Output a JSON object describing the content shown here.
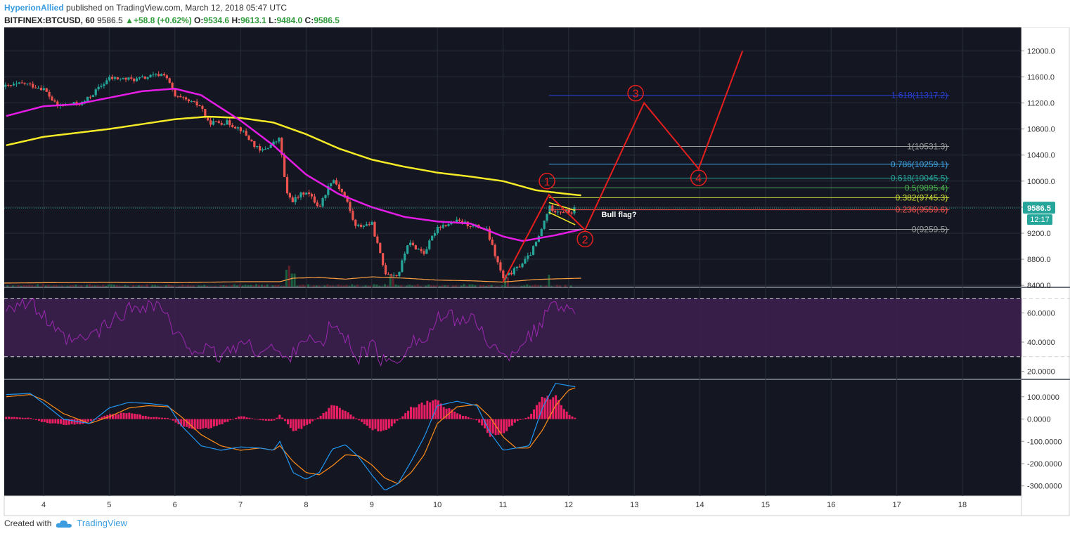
{
  "header": {
    "author": "HyperionAllied",
    "published": "published on TradingView.com, March 12, 2018 05:47 UTC",
    "symbol": "BITFINEX:BTCUSD, 60",
    "last": "9586.5",
    "change_arrow": "▲",
    "change": "+58.8 (+0.62%)",
    "o_label": "O:",
    "o": "9534.6",
    "h_label": "H:",
    "h": "9613.1",
    "l_label": "L:",
    "l": "9484.0",
    "c_label": "C:",
    "c": "9586.5"
  },
  "footer": {
    "created_with": "Created with",
    "brand": "TradingView",
    "logo_icon": "cloud-logo-icon"
  },
  "colors": {
    "background": "#141721",
    "grid": "#2a2e39",
    "bull": "#26a69a",
    "bear": "#ef5350",
    "ma_fast": "#e51ce6",
    "ma_slow": "#f5eb27",
    "wave": "#e61e1e",
    "rsi": "#9c27b0",
    "rsi_band": "#3a1f4d",
    "macd": "#2196f3",
    "signal": "#ff8c1a",
    "hist": "#e91e63",
    "price_tag": "#26a69a"
  },
  "chart_data": [
    {
      "type": "candlestick",
      "title": "BITFINEX:BTCUSD, 60",
      "x_ticks": [
        "4",
        "5",
        "6",
        "7",
        "8",
        "9",
        "10",
        "11",
        "12",
        "13",
        "14",
        "15",
        "16",
        "17",
        "18"
      ],
      "y_ticks": [
        "8400.0",
        "8800.0",
        "9200.0",
        "9600.0",
        "10000.0",
        "10400.0",
        "10800.0",
        "11200.0",
        "11600.0",
        "12000.0"
      ],
      "ylim": [
        8380,
        12360
      ],
      "xlim": [
        3.4,
        18.9
      ],
      "anchors": [
        [
          3.43,
          11450
        ],
        [
          3.7,
          11500
        ],
        [
          4.0,
          11420
        ],
        [
          4.2,
          11150
        ],
        [
          4.6,
          11200
        ],
        [
          5.0,
          11580
        ],
        [
          5.4,
          11560
        ],
        [
          5.7,
          11620
        ],
        [
          5.85,
          11650
        ],
        [
          6.0,
          11300
        ],
        [
          6.4,
          11150
        ],
        [
          6.5,
          10900
        ],
        [
          6.8,
          10900
        ],
        [
          7.0,
          10800
        ],
        [
          7.3,
          10450
        ],
        [
          7.6,
          10650
        ],
        [
          7.7,
          9800
        ],
        [
          7.8,
          9700
        ],
        [
          8.0,
          9850
        ],
        [
          8.2,
          9600
        ],
        [
          8.4,
          10050
        ],
        [
          8.6,
          9750
        ],
        [
          8.75,
          9300
        ],
        [
          9.0,
          9350
        ],
        [
          9.2,
          8600
        ],
        [
          9.4,
          8550
        ],
        [
          9.55,
          9050
        ],
        [
          9.8,
          8900
        ],
        [
          10.0,
          9300
        ],
        [
          10.3,
          9380
        ],
        [
          10.6,
          9300
        ],
        [
          10.75,
          9250
        ],
        [
          11.0,
          8500
        ],
        [
          11.2,
          8650
        ],
        [
          11.4,
          8850
        ],
        [
          11.55,
          9150
        ],
        [
          11.7,
          9600
        ],
        [
          11.8,
          9550
        ],
        [
          12.05,
          9520
        ],
        [
          12.1,
          9586.5
        ]
      ],
      "last_price": "9586.5",
      "countdown": "12:17",
      "ma_fast_anchors": [
        [
          3.43,
          11000
        ],
        [
          4.0,
          11150
        ],
        [
          4.5,
          11180
        ],
        [
          5.0,
          11280
        ],
        [
          5.5,
          11380
        ],
        [
          6.0,
          11420
        ],
        [
          6.4,
          11320
        ],
        [
          7.0,
          10930
        ],
        [
          7.5,
          10550
        ],
        [
          8.0,
          10100
        ],
        [
          8.5,
          9800
        ],
        [
          9.0,
          9600
        ],
        [
          9.5,
          9450
        ],
        [
          10.0,
          9380
        ],
        [
          10.5,
          9350
        ],
        [
          11.0,
          9150
        ],
        [
          11.3,
          9080
        ],
        [
          11.8,
          9170
        ],
        [
          12.2,
          9260
        ]
      ],
      "ma_slow_anchors": [
        [
          3.43,
          10550
        ],
        [
          4.0,
          10680
        ],
        [
          5.0,
          10800
        ],
        [
          6.0,
          10950
        ],
        [
          6.5,
          10990
        ],
        [
          7.0,
          10970
        ],
        [
          7.5,
          10900
        ],
        [
          8.0,
          10720
        ],
        [
          8.5,
          10500
        ],
        [
          9.0,
          10330
        ],
        [
          9.5,
          10220
        ],
        [
          10.0,
          10130
        ],
        [
          10.5,
          10070
        ],
        [
          11.0,
          10000
        ],
        [
          11.5,
          9860
        ],
        [
          12.0,
          9800
        ],
        [
          12.2,
          9780
        ]
      ],
      "volume_ma_anchors": [
        [
          3.43,
          8435
        ],
        [
          4.0,
          8440
        ],
        [
          5.0,
          8445
        ],
        [
          6.0,
          8440
        ],
        [
          7.0,
          8455
        ],
        [
          7.6,
          8455
        ],
        [
          7.8,
          8510
        ],
        [
          8.2,
          8520
        ],
        [
          8.6,
          8495
        ],
        [
          9.0,
          8530
        ],
        [
          9.5,
          8510
        ],
        [
          10.0,
          8480
        ],
        [
          10.5,
          8470
        ],
        [
          11.0,
          8450
        ],
        [
          11.5,
          8490
        ],
        [
          12.2,
          8510
        ]
      ],
      "volume_spikes": [
        [
          7.7,
          8640
        ],
        [
          7.75,
          8700
        ],
        [
          7.8,
          8580
        ],
        [
          9.3,
          8560
        ],
        [
          11.05,
          8520
        ],
        [
          11.7,
          8560
        ]
      ],
      "fibonacci": [
        {
          "label": "1.618(11317.2)",
          "value": 11317.2,
          "color": "#2a3fd6"
        },
        {
          "label": "1(10531.3)",
          "value": 10531.3,
          "color": "#9e9e9e"
        },
        {
          "label": "0.786(10259.1)",
          "value": 10259.1,
          "color": "#3fa3e0"
        },
        {
          "label": "0.618(10045.5)",
          "value": 10045.5,
          "color": "#26a69a"
        },
        {
          "label": "0.5(9895.4)",
          "value": 9895.4,
          "color": "#4caf50"
        },
        {
          "label": "0.382(9745.3)",
          "value": 9745.3,
          "color": "#cddc39"
        },
        {
          "label": "0.236(9559.6)",
          "value": 9559.6,
          "color": "#ef5350"
        },
        {
          "label": "0(9259.5)",
          "value": 9259.5,
          "color": "#9e9e9e"
        }
      ],
      "fib_x_range": [
        11.7,
        17.8
      ],
      "elliott_waves": [
        {
          "x": 11.0,
          "y": 8450,
          "label": ""
        },
        {
          "x": 11.7,
          "y": 9790,
          "label": "1"
        },
        {
          "x": 12.25,
          "y": 9250,
          "label": "2"
        },
        {
          "x": 13.15,
          "y": 11200,
          "label": "3"
        },
        {
          "x": 13.98,
          "y": 10190,
          "label": "4"
        },
        {
          "x": 14.65,
          "y": 12000,
          "label": "5"
        }
      ],
      "wave_circles": [
        {
          "label": "1",
          "x": 11.67,
          "y": 10000
        },
        {
          "label": "2",
          "x": 12.25,
          "y": 9110
        },
        {
          "label": "3",
          "x": 13.02,
          "y": 11350
        },
        {
          "label": "4",
          "x": 13.98,
          "y": 10050
        },
        {
          "label": "5",
          "x": 14.65,
          "y": 12550
        }
      ],
      "flag": {
        "upper": [
          [
            11.7,
            9670
          ],
          [
            12.1,
            9550
          ]
        ],
        "lower": [
          [
            11.7,
            9520
          ],
          [
            12.1,
            9330
          ]
        ]
      },
      "annotation": "Bull flag?"
    },
    {
      "type": "line",
      "name": "RSI",
      "y_ticks": [
        "20.0000",
        "40.0000",
        "60.0000"
      ],
      "ylim": [
        15,
        77
      ],
      "bands": [
        30,
        70
      ],
      "anchors": [
        [
          3.43,
          65
        ],
        [
          3.6,
          67
        ],
        [
          3.8,
          66
        ],
        [
          4.0,
          58
        ],
        [
          4.2,
          45
        ],
        [
          4.4,
          40
        ],
        [
          4.6,
          41
        ],
        [
          5.0,
          52
        ],
        [
          5.2,
          60
        ],
        [
          5.5,
          66
        ],
        [
          5.8,
          65
        ],
        [
          6.0,
          44
        ],
        [
          6.2,
          38
        ],
        [
          6.5,
          33
        ],
        [
          6.7,
          30
        ],
        [
          7.0,
          40
        ],
        [
          7.2,
          35
        ],
        [
          7.5,
          36
        ],
        [
          7.7,
          26
        ],
        [
          7.8,
          35
        ],
        [
          8.0,
          45
        ],
        [
          8.2,
          35
        ],
        [
          8.4,
          53
        ],
        [
          8.6,
          42
        ],
        [
          8.8,
          30
        ],
        [
          9.0,
          38
        ],
        [
          9.2,
          25
        ],
        [
          9.4,
          28
        ],
        [
          9.6,
          42
        ],
        [
          9.8,
          40
        ],
        [
          10.0,
          55
        ],
        [
          10.3,
          57
        ],
        [
          10.6,
          53
        ],
        [
          10.8,
          40
        ],
        [
          11.0,
          28
        ],
        [
          11.2,
          36
        ],
        [
          11.4,
          45
        ],
        [
          11.6,
          50
        ],
        [
          11.7,
          68
        ],
        [
          11.9,
          67
        ],
        [
          12.0,
          60
        ],
        [
          12.1,
          63
        ]
      ]
    },
    {
      "type": "bar",
      "name": "MACD",
      "y_ticks": [
        "100.0000",
        "0.0000",
        "-100.0000",
        "-200.0000",
        "-300.0000"
      ],
      "ylim": [
        -345,
        175
      ],
      "macd_anchors": [
        [
          3.43,
          110
        ],
        [
          3.8,
          115
        ],
        [
          4.0,
          70
        ],
        [
          4.3,
          0
        ],
        [
          4.7,
          -20
        ],
        [
          5.0,
          50
        ],
        [
          5.3,
          75
        ],
        [
          5.6,
          70
        ],
        [
          5.9,
          60
        ],
        [
          6.1,
          -30
        ],
        [
          6.4,
          -120
        ],
        [
          6.7,
          -140
        ],
        [
          7.0,
          -125
        ],
        [
          7.3,
          -130
        ],
        [
          7.5,
          -140
        ],
        [
          7.6,
          -100
        ],
        [
          7.8,
          -240
        ],
        [
          8.0,
          -270
        ],
        [
          8.2,
          -240
        ],
        [
          8.4,
          -135
        ],
        [
          8.6,
          -115
        ],
        [
          8.8,
          -170
        ],
        [
          9.0,
          -250
        ],
        [
          9.2,
          -320
        ],
        [
          9.4,
          -290
        ],
        [
          9.6,
          -190
        ],
        [
          9.8,
          -80
        ],
        [
          10.0,
          60
        ],
        [
          10.3,
          80
        ],
        [
          10.6,
          60
        ],
        [
          10.8,
          -60
        ],
        [
          11.0,
          -140
        ],
        [
          11.2,
          -130
        ],
        [
          11.4,
          -120
        ],
        [
          11.6,
          50
        ],
        [
          11.8,
          160
        ],
        [
          12.0,
          150
        ],
        [
          12.1,
          145
        ]
      ],
      "signal_anchors": [
        [
          3.43,
          100
        ],
        [
          3.8,
          110
        ],
        [
          4.0,
          85
        ],
        [
          4.3,
          25
        ],
        [
          4.7,
          -20
        ],
        [
          5.0,
          10
        ],
        [
          5.3,
          50
        ],
        [
          5.6,
          60
        ],
        [
          5.9,
          55
        ],
        [
          6.1,
          10
        ],
        [
          6.4,
          -70
        ],
        [
          6.7,
          -120
        ],
        [
          7.0,
          -140
        ],
        [
          7.3,
          -130
        ],
        [
          7.5,
          -140
        ],
        [
          7.6,
          -120
        ],
        [
          7.8,
          -190
        ],
        [
          8.0,
          -240
        ],
        [
          8.2,
          -250
        ],
        [
          8.4,
          -210
        ],
        [
          8.6,
          -160
        ],
        [
          8.8,
          -165
        ],
        [
          9.0,
          -205
        ],
        [
          9.2,
          -265
        ],
        [
          9.4,
          -290
        ],
        [
          9.6,
          -240
        ],
        [
          9.8,
          -160
        ],
        [
          10.0,
          -20
        ],
        [
          10.3,
          55
        ],
        [
          10.6,
          65
        ],
        [
          10.8,
          10
        ],
        [
          11.0,
          -80
        ],
        [
          11.2,
          -130
        ],
        [
          11.4,
          -130
        ],
        [
          11.6,
          -50
        ],
        [
          11.8,
          60
        ],
        [
          12.0,
          130
        ],
        [
          12.1,
          140
        ]
      ],
      "hist_anchors": [
        [
          3.43,
          10
        ],
        [
          3.8,
          5
        ],
        [
          4.0,
          -15
        ],
        [
          4.3,
          -25
        ],
        [
          4.6,
          -20
        ],
        [
          5.0,
          20
        ],
        [
          5.3,
          30
        ],
        [
          5.6,
          10
        ],
        [
          5.9,
          5
        ],
        [
          6.1,
          -30
        ],
        [
          6.4,
          -50
        ],
        [
          6.7,
          -25
        ],
        [
          7.0,
          15
        ],
        [
          7.3,
          -5
        ],
        [
          7.5,
          -10
        ],
        [
          7.6,
          20
        ],
        [
          7.8,
          -55
        ],
        [
          8.0,
          -30
        ],
        [
          8.2,
          10
        ],
        [
          8.4,
          60
        ],
        [
          8.6,
          40
        ],
        [
          8.8,
          -5
        ],
        [
          9.0,
          -45
        ],
        [
          9.2,
          -55
        ],
        [
          9.4,
          -5
        ],
        [
          9.6,
          50
        ],
        [
          9.8,
          70
        ],
        [
          10.0,
          80
        ],
        [
          10.3,
          25
        ],
        [
          10.6,
          -5
        ],
        [
          10.8,
          -70
        ],
        [
          11.0,
          -65
        ],
        [
          11.2,
          -10
        ],
        [
          11.4,
          10
        ],
        [
          11.6,
          100
        ],
        [
          11.8,
          100
        ],
        [
          12.0,
          20
        ],
        [
          12.1,
          5
        ]
      ]
    }
  ]
}
